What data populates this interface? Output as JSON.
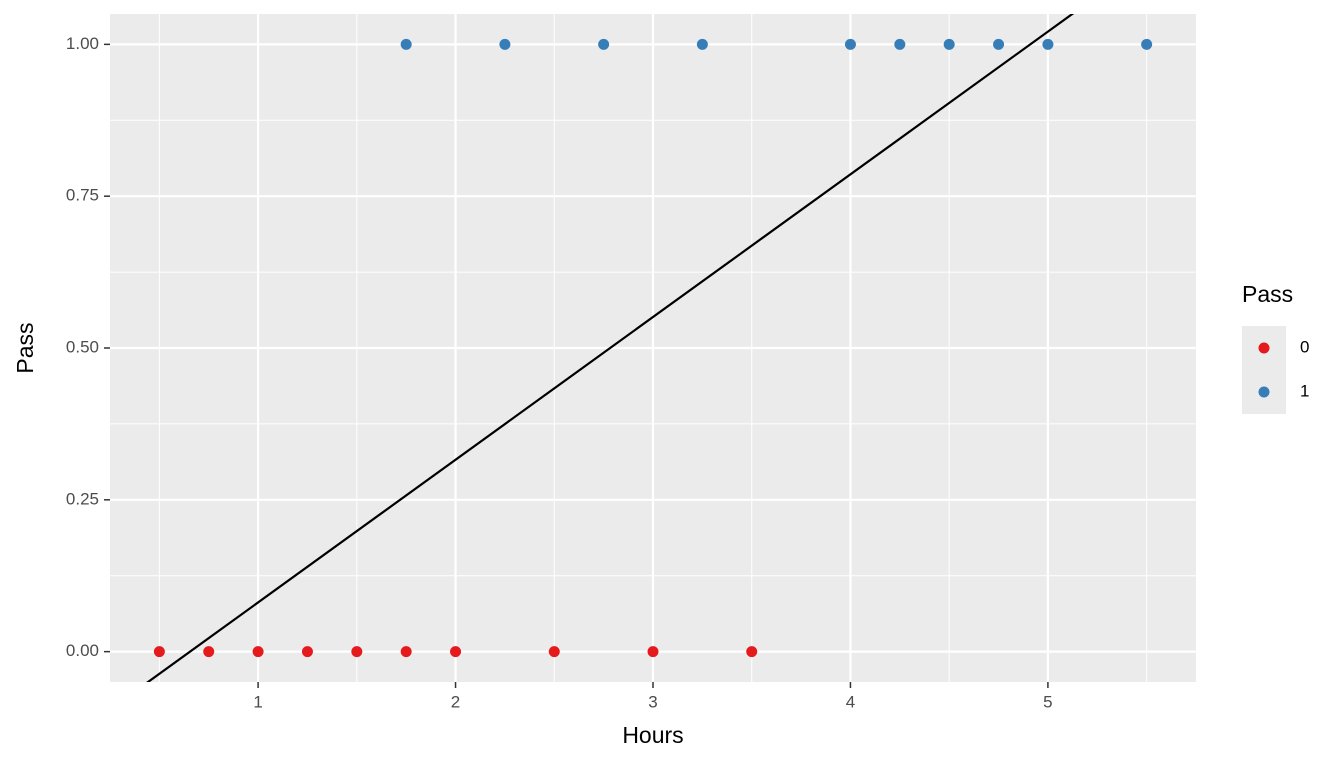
{
  "chart_data": {
    "type": "scatter",
    "x_label": "Hours",
    "y_label": "Pass",
    "legend_title": "Pass",
    "legend_position": "right",
    "series": [
      {
        "name": "0",
        "color": "#e41a1c",
        "x": [
          0.5,
          0.75,
          1,
          1.25,
          1.5,
          1.75,
          2,
          2.5,
          3,
          3.5
        ],
        "values": [
          0,
          0,
          0,
          0,
          0,
          0,
          0,
          0,
          0,
          0
        ]
      },
      {
        "name": "1",
        "color": "#377eb8",
        "x": [
          1.75,
          2.25,
          2.75,
          3.25,
          4,
          4.25,
          4.5,
          4.75,
          5,
          5.5
        ],
        "values": [
          1,
          1,
          1,
          1,
          1,
          1,
          1,
          1,
          1,
          1
        ]
      }
    ],
    "line": {
      "intercept": -0.154,
      "slope": 0.235,
      "color": "#000000"
    },
    "xlim": [
      0.25,
      5.75
    ],
    "ylim": [
      -0.05,
      1.05
    ],
    "xticks": [
      1,
      2,
      3,
      4,
      5
    ],
    "yticks": [
      {
        "value": 0,
        "label": "0.00"
      },
      {
        "value": 0.25,
        "label": "0.25"
      },
      {
        "value": 0.5,
        "label": "0.50"
      },
      {
        "value": 0.75,
        "label": "0.75"
      },
      {
        "value": 1,
        "label": "1.00"
      }
    ],
    "x_minor_grid": [
      0.5,
      1.5,
      2.5,
      3.5,
      4.5,
      5.5
    ],
    "y_minor_grid": [
      0.125,
      0.375,
      0.625,
      0.875
    ],
    "grid": true
  }
}
